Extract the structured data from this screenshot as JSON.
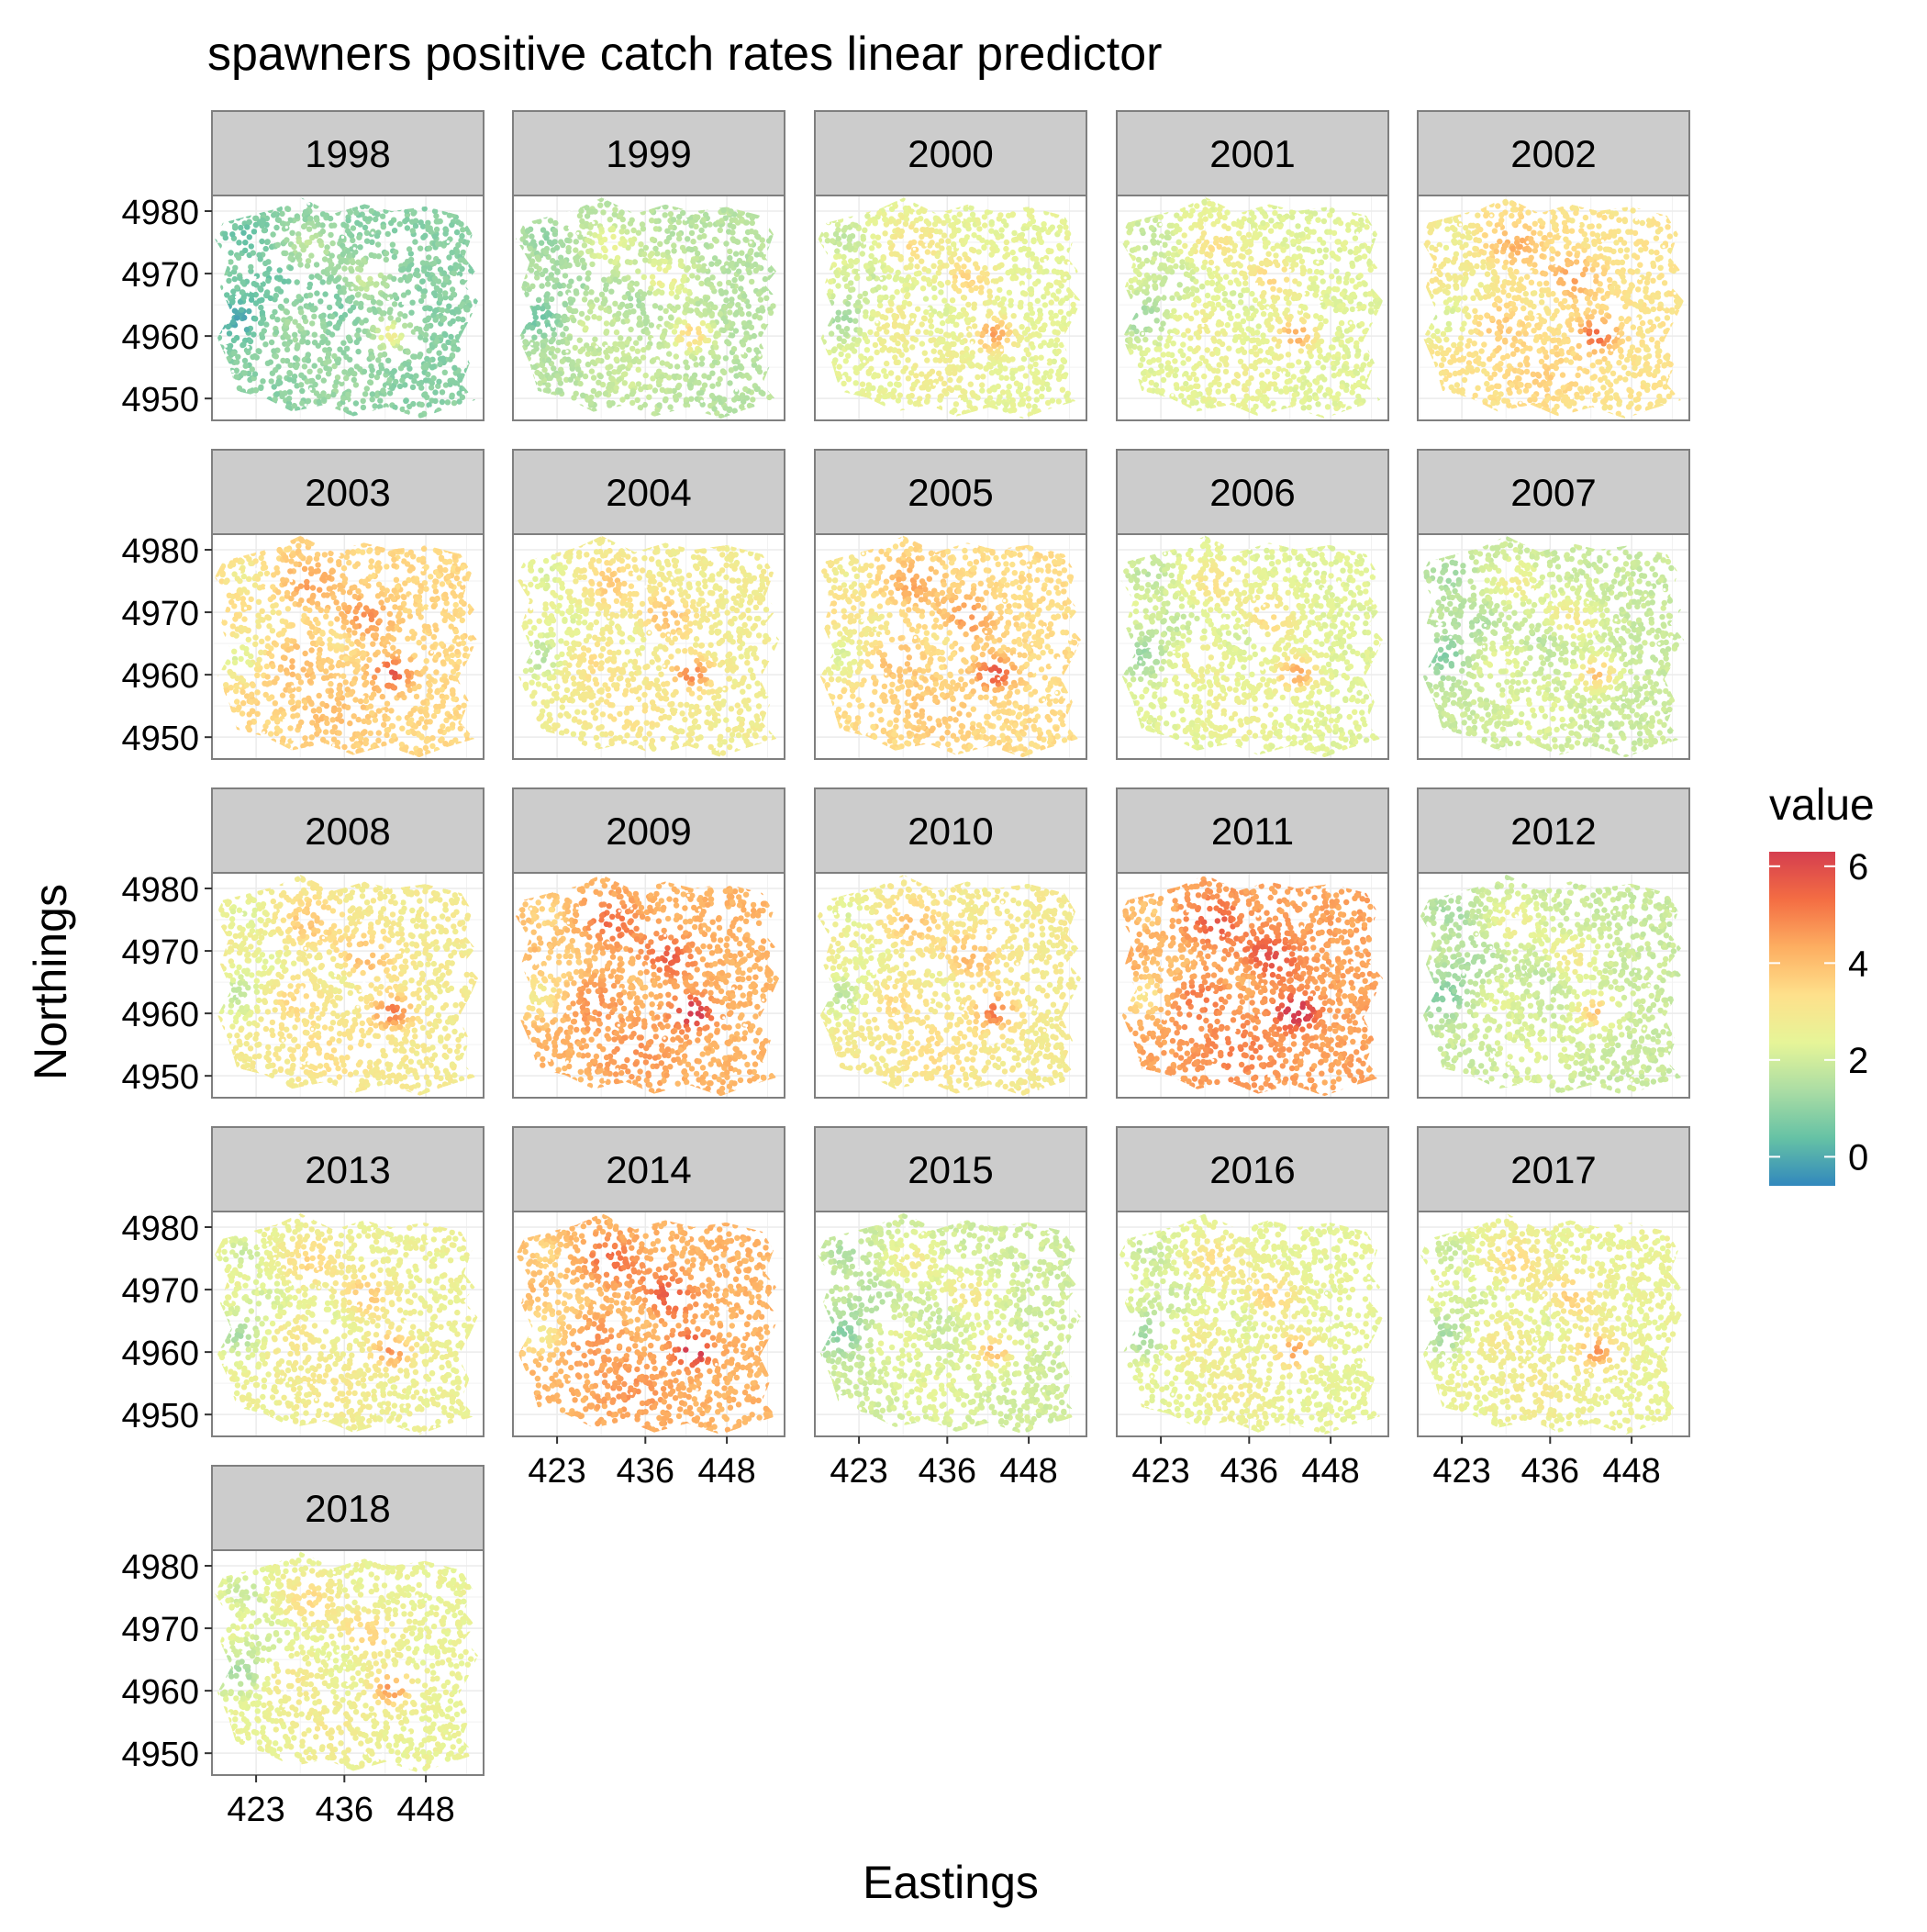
{
  "chart_data": {
    "type": "heatmap",
    "title": "spawners positive catch rates linear predictor",
    "xlabel": "Eastings",
    "ylabel": "Northings",
    "x_ticks": [
      423,
      436,
      448
    ],
    "y_ticks": [
      4950,
      4960,
      4970,
      4980
    ],
    "xlim": [
      416.5,
      456.5
    ],
    "ylim": [
      4946.5,
      4982.5
    ],
    "grid": true,
    "facet_layout": {
      "columns": 5,
      "rows": 5
    },
    "legend": {
      "title": "value",
      "position": "right",
      "min": -0.6,
      "max": 6.3,
      "ticks": [
        0,
        2,
        4,
        6
      ],
      "colors": [
        "#3288BD",
        "#66C2A5",
        "#ABDDA4",
        "#E6F598",
        "#FEE08B",
        "#FDAE61",
        "#F46D43",
        "#D53E4F"
      ]
    },
    "facets": [
      {
        "year": "1998",
        "mean_value": 0.9
      },
      {
        "year": "1999",
        "mean_value": 1.6
      },
      {
        "year": "2000",
        "mean_value": 2.4
      },
      {
        "year": "2001",
        "mean_value": 2.3
      },
      {
        "year": "2002",
        "mean_value": 3.2
      },
      {
        "year": "2003",
        "mean_value": 3.5
      },
      {
        "year": "2004",
        "mean_value": 2.8
      },
      {
        "year": "2005",
        "mean_value": 3.4
      },
      {
        "year": "2006",
        "mean_value": 2.3
      },
      {
        "year": "2007",
        "mean_value": 1.9
      },
      {
        "year": "2008",
        "mean_value": 2.9
      },
      {
        "year": "2009",
        "mean_value": 4.2
      },
      {
        "year": "2010",
        "mean_value": 2.9
      },
      {
        "year": "2011",
        "mean_value": 4.5
      },
      {
        "year": "2012",
        "mean_value": 1.9
      },
      {
        "year": "2013",
        "mean_value": 2.6
      },
      {
        "year": "2014",
        "mean_value": 4.2
      },
      {
        "year": "2015",
        "mean_value": 2.0
      },
      {
        "year": "2016",
        "mean_value": 2.4
      },
      {
        "year": "2017",
        "mean_value": 2.5
      },
      {
        "year": "2018",
        "mean_value": 2.5
      }
    ]
  }
}
